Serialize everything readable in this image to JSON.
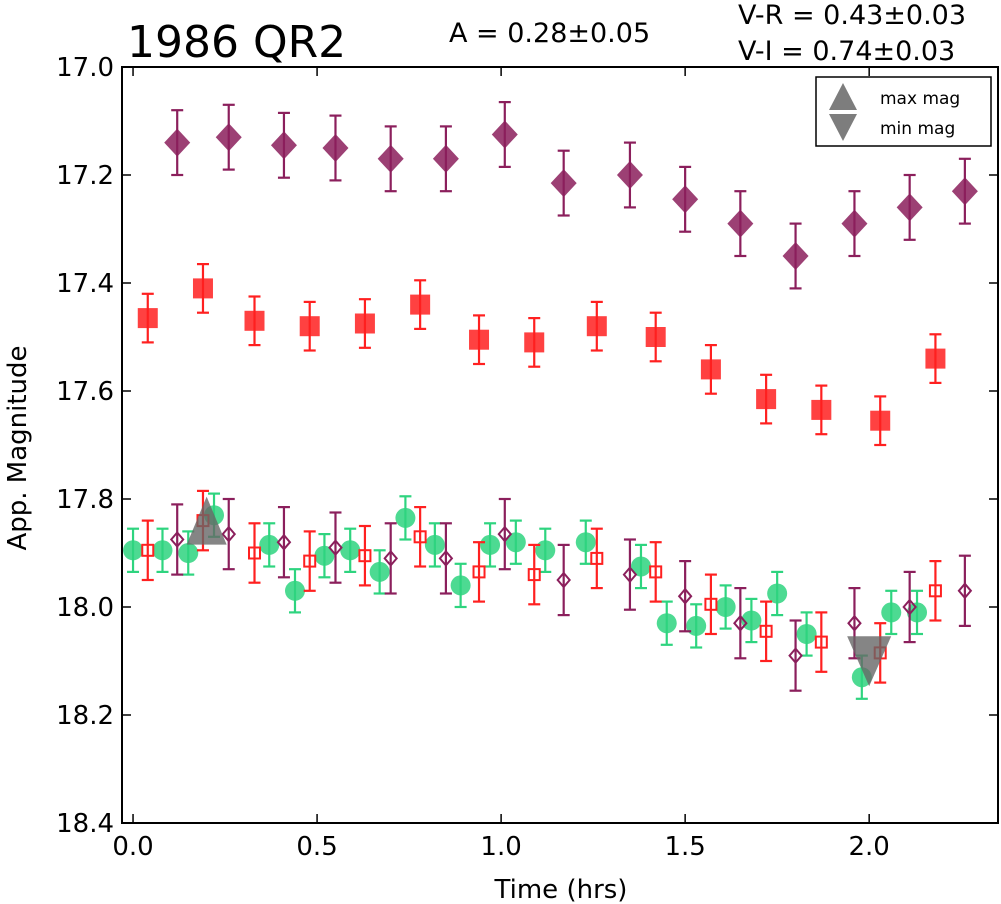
{
  "chart_data": {
    "type": "scatter",
    "title": "1986 QR2",
    "annotations": {
      "amplitude": "A  = 0.28±0.05",
      "v_r": "V-R = 0.43±0.03",
      "v_i": "V-I  = 0.74±0.03"
    },
    "xlabel": "Time (hrs)",
    "ylabel": "App. Magnitude",
    "xlim": [
      -0.03,
      2.35
    ],
    "ylim": [
      17.0,
      18.4
    ],
    "y_inverted": true,
    "x_ticks": [
      "0.0",
      "0.5",
      "1.0",
      "1.5",
      "2.0"
    ],
    "y_ticks": [
      "17.0",
      "17.2",
      "17.4",
      "17.6",
      "17.8",
      "18.0",
      "18.2",
      "18.4"
    ],
    "grid": false,
    "legend": {
      "position": "top-right",
      "entries": [
        "max mag",
        "min mag"
      ]
    },
    "colors": {
      "purple": "#8b1f5c",
      "red": "#ff2020",
      "green": "#2ed47f",
      "gray": "#666666"
    },
    "series": [
      {
        "marker": "filled-diamond",
        "color": "#8b1f5c",
        "error": 0.06,
        "points": [
          [
            0.12,
            17.14
          ],
          [
            0.26,
            17.13
          ],
          [
            0.41,
            17.145
          ],
          [
            0.55,
            17.15
          ],
          [
            0.7,
            17.17
          ],
          [
            0.85,
            17.17
          ],
          [
            1.01,
            17.125
          ],
          [
            1.17,
            17.215
          ],
          [
            1.35,
            17.2
          ],
          [
            1.5,
            17.245
          ],
          [
            1.65,
            17.29
          ],
          [
            1.8,
            17.35
          ],
          [
            1.96,
            17.29
          ],
          [
            2.11,
            17.26
          ],
          [
            2.26,
            17.23
          ]
        ]
      },
      {
        "marker": "filled-square",
        "color": "#ff2020",
        "error": 0.045,
        "points": [
          [
            0.04,
            17.465
          ],
          [
            0.19,
            17.41
          ],
          [
            0.33,
            17.47
          ],
          [
            0.48,
            17.48
          ],
          [
            0.63,
            17.475
          ],
          [
            0.78,
            17.44
          ],
          [
            0.94,
            17.505
          ],
          [
            1.09,
            17.51
          ],
          [
            1.26,
            17.48
          ],
          [
            1.42,
            17.5
          ],
          [
            1.57,
            17.56
          ],
          [
            1.72,
            17.615
          ],
          [
            1.87,
            17.635
          ],
          [
            2.03,
            17.655
          ],
          [
            2.18,
            17.54
          ]
        ]
      },
      {
        "marker": "filled-circle",
        "color": "#2ed47f",
        "error": 0.04,
        "points": [
          [
            0.0,
            17.895
          ],
          [
            0.08,
            17.895
          ],
          [
            0.15,
            17.9
          ],
          [
            0.22,
            17.83
          ],
          [
            0.37,
            17.885
          ],
          [
            0.44,
            17.97
          ],
          [
            0.52,
            17.905
          ],
          [
            0.59,
            17.895
          ],
          [
            0.67,
            17.935
          ],
          [
            0.74,
            17.835
          ],
          [
            0.82,
            17.885
          ],
          [
            0.89,
            17.96
          ],
          [
            0.97,
            17.885
          ],
          [
            1.04,
            17.88
          ],
          [
            1.12,
            17.895
          ],
          [
            1.23,
            17.88
          ],
          [
            1.38,
            17.925
          ],
          [
            1.45,
            18.03
          ],
          [
            1.53,
            18.035
          ],
          [
            1.61,
            18.0
          ],
          [
            1.68,
            18.025
          ],
          [
            1.75,
            17.975
          ],
          [
            1.83,
            18.05
          ],
          [
            1.98,
            18.13
          ],
          [
            2.06,
            18.01
          ],
          [
            2.13,
            18.01
          ]
        ]
      },
      {
        "marker": "open-square",
        "color": "#ff2020",
        "error": 0.055,
        "points": [
          [
            0.04,
            17.895
          ],
          [
            0.19,
            17.84
          ],
          [
            0.33,
            17.9
          ],
          [
            0.48,
            17.915
          ],
          [
            0.63,
            17.905
          ],
          [
            0.78,
            17.87
          ],
          [
            0.94,
            17.935
          ],
          [
            1.09,
            17.94
          ],
          [
            1.26,
            17.91
          ],
          [
            1.42,
            17.935
          ],
          [
            1.57,
            17.995
          ],
          [
            1.72,
            18.045
          ],
          [
            1.87,
            18.065
          ],
          [
            2.03,
            18.085
          ],
          [
            2.18,
            17.97
          ]
        ]
      },
      {
        "marker": "open-diamond",
        "color": "#8b1f5c",
        "error": 0.065,
        "points": [
          [
            0.12,
            17.875
          ],
          [
            0.26,
            17.865
          ],
          [
            0.41,
            17.88
          ],
          [
            0.55,
            17.89
          ],
          [
            0.7,
            17.91
          ],
          [
            0.85,
            17.91
          ],
          [
            1.01,
            17.865
          ],
          [
            1.17,
            17.95
          ],
          [
            1.35,
            17.94
          ],
          [
            1.5,
            17.98
          ],
          [
            1.65,
            18.03
          ],
          [
            1.8,
            18.09
          ],
          [
            1.96,
            18.03
          ],
          [
            2.11,
            18.0
          ],
          [
            2.26,
            17.97
          ]
        ]
      },
      {
        "marker": "triangle-up",
        "color": "#666666",
        "label": "max mag",
        "points": [
          [
            0.2,
            17.84
          ]
        ]
      },
      {
        "marker": "triangle-down",
        "color": "#666666",
        "label": "min mag",
        "points": [
          [
            2.0,
            18.095
          ]
        ]
      }
    ]
  }
}
